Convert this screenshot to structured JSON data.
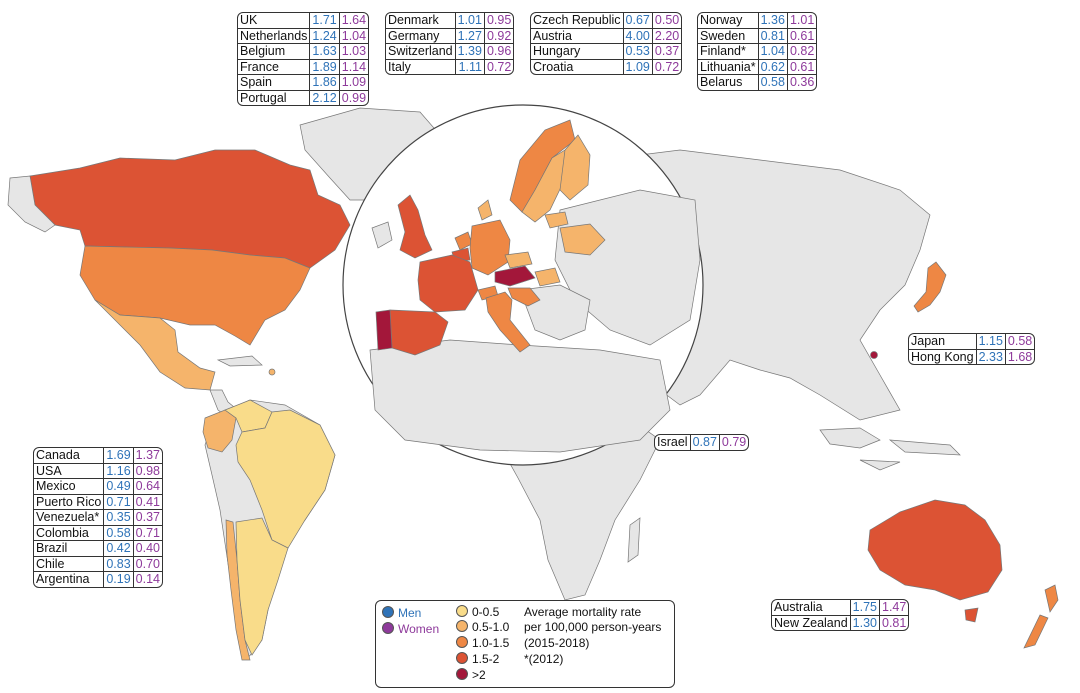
{
  "colors": {
    "scale": [
      "#f9dc8a",
      "#f5b46b",
      "#ee8744",
      "#dc5334",
      "#a3173a"
    ],
    "men": "#2f73b8",
    "women": "#8e3a9b",
    "no_data": "#e6e6e6",
    "border": "#777777"
  },
  "legend": {
    "men_label": "Men",
    "women_label": "Women",
    "bins": [
      "0-0.5",
      "0.5-1.0",
      "1.0-1.5",
      "1.5-2",
      ">2"
    ],
    "title_lines": [
      "Average mortality rate",
      "per 100,000 person-years",
      "(2015-2018)",
      "*(2012)"
    ]
  },
  "tables": {
    "europe_1": [
      {
        "country": "UK",
        "men": "1.71",
        "women": "1.64"
      },
      {
        "country": "Netherlands",
        "men": "1.24",
        "women": "1.04"
      },
      {
        "country": "Belgium",
        "men": "1.63",
        "women": "1.03"
      },
      {
        "country": "France",
        "men": "1.89",
        "women": "1.14"
      },
      {
        "country": "Spain",
        "men": "1.86",
        "women": "1.09"
      },
      {
        "country": "Portugal",
        "men": "2.12",
        "women": "0.99"
      }
    ],
    "europe_2": [
      {
        "country": "Denmark",
        "men": "1.01",
        "women": "0.95"
      },
      {
        "country": "Germany",
        "men": "1.27",
        "women": "0.92"
      },
      {
        "country": "Switzerland",
        "men": "1.39",
        "women": "0.96"
      },
      {
        "country": "Italy",
        "men": "1.11",
        "women": "0.72"
      }
    ],
    "europe_3": [
      {
        "country": "Czech Republic",
        "men": "0.67",
        "women": "0.50"
      },
      {
        "country": "Austria",
        "men": "4.00",
        "women": "2.20"
      },
      {
        "country": "Hungary",
        "men": "0.53",
        "women": "0.37"
      },
      {
        "country": "Croatia",
        "men": "1.09",
        "women": "0.72"
      }
    ],
    "europe_4": [
      {
        "country": "Norway",
        "men": "1.36",
        "women": "1.01"
      },
      {
        "country": "Sweden",
        "men": "0.81",
        "women": "0.61"
      },
      {
        "country": "Finland*",
        "men": "1.04",
        "women": "0.82"
      },
      {
        "country": "Lithuania*",
        "men": "0.62",
        "women": "0.61"
      },
      {
        "country": "Belarus",
        "men": "0.58",
        "women": "0.36"
      }
    ],
    "americas": [
      {
        "country": "Canada",
        "men": "1.69",
        "women": "1.37"
      },
      {
        "country": "USA",
        "men": "1.16",
        "women": "0.98"
      },
      {
        "country": "Mexico",
        "men": "0.49",
        "women": "0.64"
      },
      {
        "country": "Puerto Rico",
        "men": "0.71",
        "women": "0.41"
      },
      {
        "country": "Venezuela*",
        "men": "0.35",
        "women": "0.37"
      },
      {
        "country": "Colombia",
        "men": "0.58",
        "women": "0.71"
      },
      {
        "country": "Brazil",
        "men": "0.42",
        "women": "0.40"
      },
      {
        "country": "Chile",
        "men": "0.83",
        "women": "0.70"
      },
      {
        "country": "Argentina",
        "men": "0.19",
        "women": "0.14"
      }
    ],
    "asia": [
      {
        "country": "Japan",
        "men": "1.15",
        "women": "0.58"
      },
      {
        "country": "Hong Kong",
        "men": "2.33",
        "women": "1.68"
      }
    ],
    "israel": [
      {
        "country": "Israel",
        "men": "0.87",
        "women": "0.79"
      }
    ],
    "oceania": [
      {
        "country": "Australia",
        "men": "1.75",
        "women": "1.47"
      },
      {
        "country": "New Zealand",
        "men": "1.30",
        "women": "0.81"
      }
    ]
  }
}
